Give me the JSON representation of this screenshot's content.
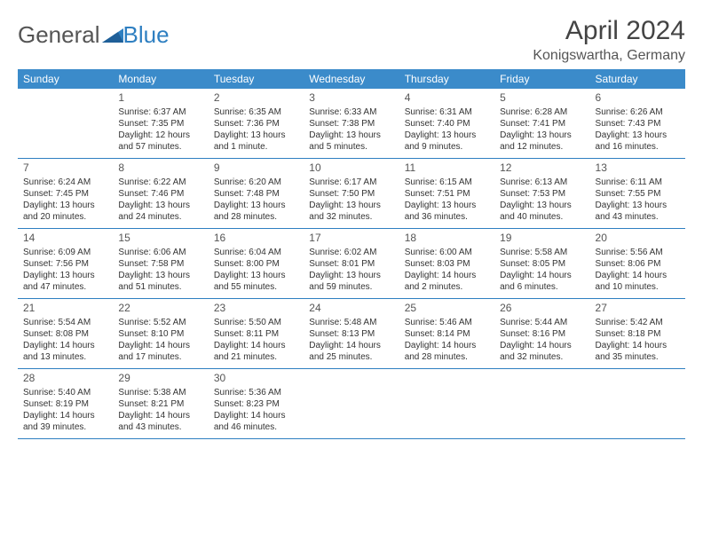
{
  "logo": {
    "general": "General",
    "blue": "Blue"
  },
  "title": "April 2024",
  "location": "Konigswartha, Germany",
  "colors": {
    "header_bg": "#3b8bca",
    "header_text": "#ffffff",
    "border": "#2e7fc1",
    "body_text": "#333333",
    "logo_general": "#555555",
    "logo_blue": "#2e7fc1",
    "triangle": "#1f5f98"
  },
  "day_headers": [
    "Sunday",
    "Monday",
    "Tuesday",
    "Wednesday",
    "Thursday",
    "Friday",
    "Saturday"
  ],
  "weeks": [
    [
      {
        "empty": true
      },
      {
        "num": "1",
        "sunrise": "Sunrise: 6:37 AM",
        "sunset": "Sunset: 7:35 PM",
        "daylight": "Daylight: 12 hours and 57 minutes."
      },
      {
        "num": "2",
        "sunrise": "Sunrise: 6:35 AM",
        "sunset": "Sunset: 7:36 PM",
        "daylight": "Daylight: 13 hours and 1 minute."
      },
      {
        "num": "3",
        "sunrise": "Sunrise: 6:33 AM",
        "sunset": "Sunset: 7:38 PM",
        "daylight": "Daylight: 13 hours and 5 minutes."
      },
      {
        "num": "4",
        "sunrise": "Sunrise: 6:31 AM",
        "sunset": "Sunset: 7:40 PM",
        "daylight": "Daylight: 13 hours and 9 minutes."
      },
      {
        "num": "5",
        "sunrise": "Sunrise: 6:28 AM",
        "sunset": "Sunset: 7:41 PM",
        "daylight": "Daylight: 13 hours and 12 minutes."
      },
      {
        "num": "6",
        "sunrise": "Sunrise: 6:26 AM",
        "sunset": "Sunset: 7:43 PM",
        "daylight": "Daylight: 13 hours and 16 minutes."
      }
    ],
    [
      {
        "num": "7",
        "sunrise": "Sunrise: 6:24 AM",
        "sunset": "Sunset: 7:45 PM",
        "daylight": "Daylight: 13 hours and 20 minutes."
      },
      {
        "num": "8",
        "sunrise": "Sunrise: 6:22 AM",
        "sunset": "Sunset: 7:46 PM",
        "daylight": "Daylight: 13 hours and 24 minutes."
      },
      {
        "num": "9",
        "sunrise": "Sunrise: 6:20 AM",
        "sunset": "Sunset: 7:48 PM",
        "daylight": "Daylight: 13 hours and 28 minutes."
      },
      {
        "num": "10",
        "sunrise": "Sunrise: 6:17 AM",
        "sunset": "Sunset: 7:50 PM",
        "daylight": "Daylight: 13 hours and 32 minutes."
      },
      {
        "num": "11",
        "sunrise": "Sunrise: 6:15 AM",
        "sunset": "Sunset: 7:51 PM",
        "daylight": "Daylight: 13 hours and 36 minutes."
      },
      {
        "num": "12",
        "sunrise": "Sunrise: 6:13 AM",
        "sunset": "Sunset: 7:53 PM",
        "daylight": "Daylight: 13 hours and 40 minutes."
      },
      {
        "num": "13",
        "sunrise": "Sunrise: 6:11 AM",
        "sunset": "Sunset: 7:55 PM",
        "daylight": "Daylight: 13 hours and 43 minutes."
      }
    ],
    [
      {
        "num": "14",
        "sunrise": "Sunrise: 6:09 AM",
        "sunset": "Sunset: 7:56 PM",
        "daylight": "Daylight: 13 hours and 47 minutes."
      },
      {
        "num": "15",
        "sunrise": "Sunrise: 6:06 AM",
        "sunset": "Sunset: 7:58 PM",
        "daylight": "Daylight: 13 hours and 51 minutes."
      },
      {
        "num": "16",
        "sunrise": "Sunrise: 6:04 AM",
        "sunset": "Sunset: 8:00 PM",
        "daylight": "Daylight: 13 hours and 55 minutes."
      },
      {
        "num": "17",
        "sunrise": "Sunrise: 6:02 AM",
        "sunset": "Sunset: 8:01 PM",
        "daylight": "Daylight: 13 hours and 59 minutes."
      },
      {
        "num": "18",
        "sunrise": "Sunrise: 6:00 AM",
        "sunset": "Sunset: 8:03 PM",
        "daylight": "Daylight: 14 hours and 2 minutes."
      },
      {
        "num": "19",
        "sunrise": "Sunrise: 5:58 AM",
        "sunset": "Sunset: 8:05 PM",
        "daylight": "Daylight: 14 hours and 6 minutes."
      },
      {
        "num": "20",
        "sunrise": "Sunrise: 5:56 AM",
        "sunset": "Sunset: 8:06 PM",
        "daylight": "Daylight: 14 hours and 10 minutes."
      }
    ],
    [
      {
        "num": "21",
        "sunrise": "Sunrise: 5:54 AM",
        "sunset": "Sunset: 8:08 PM",
        "daylight": "Daylight: 14 hours and 13 minutes."
      },
      {
        "num": "22",
        "sunrise": "Sunrise: 5:52 AM",
        "sunset": "Sunset: 8:10 PM",
        "daylight": "Daylight: 14 hours and 17 minutes."
      },
      {
        "num": "23",
        "sunrise": "Sunrise: 5:50 AM",
        "sunset": "Sunset: 8:11 PM",
        "daylight": "Daylight: 14 hours and 21 minutes."
      },
      {
        "num": "24",
        "sunrise": "Sunrise: 5:48 AM",
        "sunset": "Sunset: 8:13 PM",
        "daylight": "Daylight: 14 hours and 25 minutes."
      },
      {
        "num": "25",
        "sunrise": "Sunrise: 5:46 AM",
        "sunset": "Sunset: 8:14 PM",
        "daylight": "Daylight: 14 hours and 28 minutes."
      },
      {
        "num": "26",
        "sunrise": "Sunrise: 5:44 AM",
        "sunset": "Sunset: 8:16 PM",
        "daylight": "Daylight: 14 hours and 32 minutes."
      },
      {
        "num": "27",
        "sunrise": "Sunrise: 5:42 AM",
        "sunset": "Sunset: 8:18 PM",
        "daylight": "Daylight: 14 hours and 35 minutes."
      }
    ],
    [
      {
        "num": "28",
        "sunrise": "Sunrise: 5:40 AM",
        "sunset": "Sunset: 8:19 PM",
        "daylight": "Daylight: 14 hours and 39 minutes."
      },
      {
        "num": "29",
        "sunrise": "Sunrise: 5:38 AM",
        "sunset": "Sunset: 8:21 PM",
        "daylight": "Daylight: 14 hours and 43 minutes."
      },
      {
        "num": "30",
        "sunrise": "Sunrise: 5:36 AM",
        "sunset": "Sunset: 8:23 PM",
        "daylight": "Daylight: 14 hours and 46 minutes."
      },
      {
        "empty": true
      },
      {
        "empty": true
      },
      {
        "empty": true
      },
      {
        "empty": true
      }
    ]
  ]
}
